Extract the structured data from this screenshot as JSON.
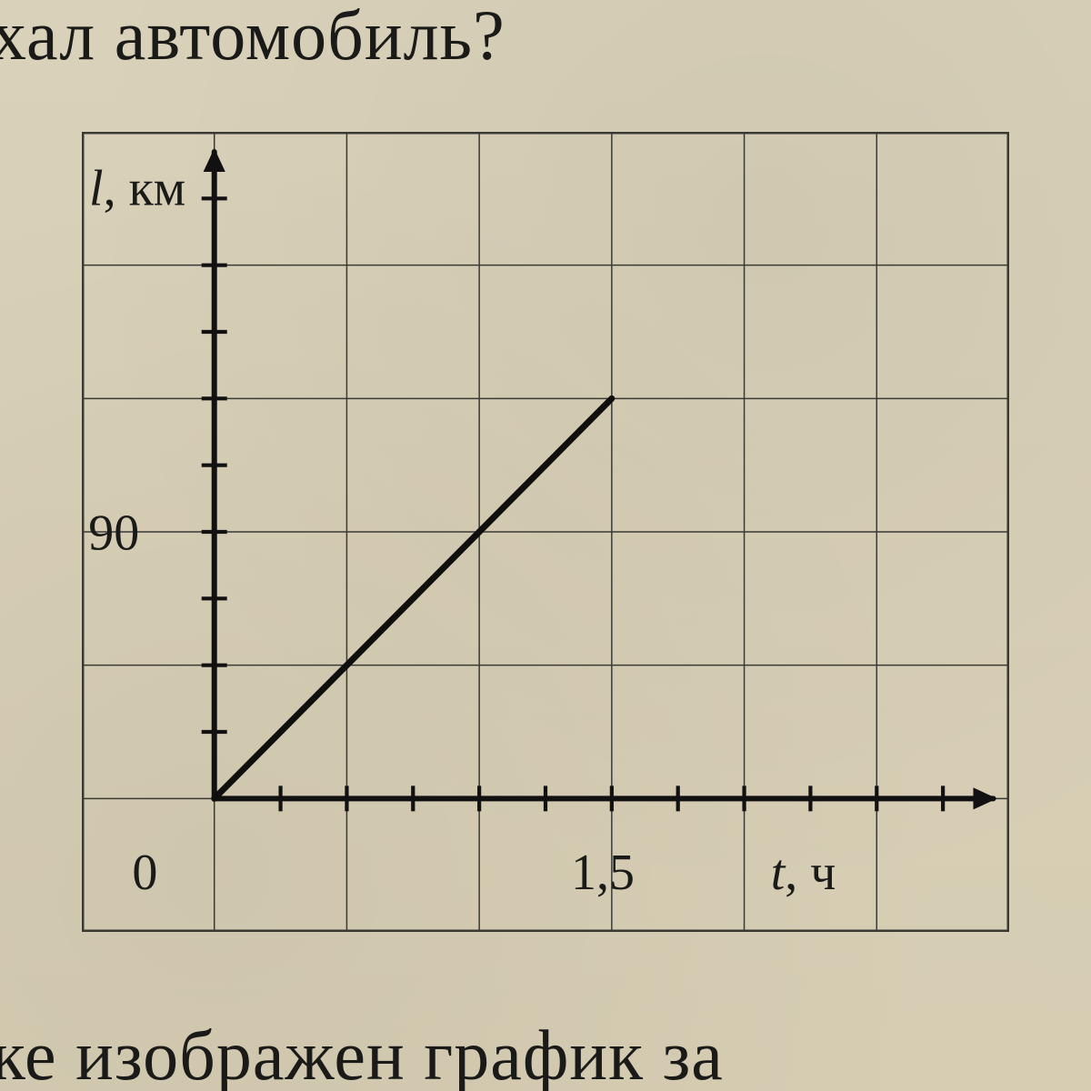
{
  "surround": {
    "top_fragment": "хал автомобиль?",
    "bottom_fragment": "ке изображен график за"
  },
  "chart": {
    "type": "line",
    "background_color": "#d8d0b8",
    "grid_color": "#3a3a34",
    "grid_stroke": 1.5,
    "frame_stroke": 4,
    "axis_color": "#111111",
    "axis_stroke": 6,
    "minor_tick_len": 14,
    "y_axis_label": "l, км",
    "y_label_fontsize": 56,
    "x_axis_label": "t, ч",
    "x_label_fontsize": 56,
    "origin_label": "0",
    "y_tick_label": "90",
    "x_tick_label": "1,5",
    "tick_fontsize": 56,
    "x_major_cells": 7,
    "y_major_cells": 6,
    "origin_cell": {
      "col": 1,
      "row_from_bottom": 1
    },
    "x_tick_label_at_cell": 4,
    "y_tick_value_per_cell": 45,
    "x_tick_value_per_cell": 0.5,
    "ylim": [
      0,
      225
    ],
    "xlim": [
      0,
      3
    ],
    "series": {
      "points": [
        {
          "t": 0,
          "l": 0
        },
        {
          "t": 1.5,
          "l": 135
        }
      ],
      "color": "#0f0f0d",
      "stroke": 7
    },
    "arrowhead_size": 22
  }
}
